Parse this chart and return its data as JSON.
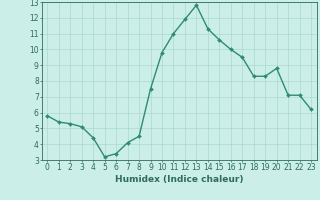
{
  "x": [
    0,
    1,
    2,
    3,
    4,
    5,
    6,
    7,
    8,
    9,
    10,
    11,
    12,
    13,
    14,
    15,
    16,
    17,
    18,
    19,
    20,
    21,
    22,
    23
  ],
  "y": [
    5.8,
    5.4,
    5.3,
    5.1,
    4.4,
    3.2,
    3.4,
    4.1,
    4.5,
    7.5,
    9.8,
    11.0,
    11.9,
    12.8,
    11.3,
    10.6,
    10.0,
    9.5,
    8.3,
    8.3,
    8.8,
    7.1,
    7.1,
    6.2
  ],
  "line_color": "#2e8b74",
  "marker": "D",
  "marker_size": 2.0,
  "line_width": 1.0,
  "bg_color": "#cceee8",
  "grid_color": "#aad8d0",
  "xlabel": "Humidex (Indice chaleur)",
  "xlim": [
    -0.5,
    23.5
  ],
  "ylim": [
    3,
    13
  ],
  "yticks": [
    3,
    4,
    5,
    6,
    7,
    8,
    9,
    10,
    11,
    12,
    13
  ],
  "xticks": [
    0,
    1,
    2,
    3,
    4,
    5,
    6,
    7,
    8,
    9,
    10,
    11,
    12,
    13,
    14,
    15,
    16,
    17,
    18,
    19,
    20,
    21,
    22,
    23
  ],
  "tick_color": "#2e6b60",
  "xlabel_fontsize": 6.5,
  "tick_fontsize": 5.5
}
